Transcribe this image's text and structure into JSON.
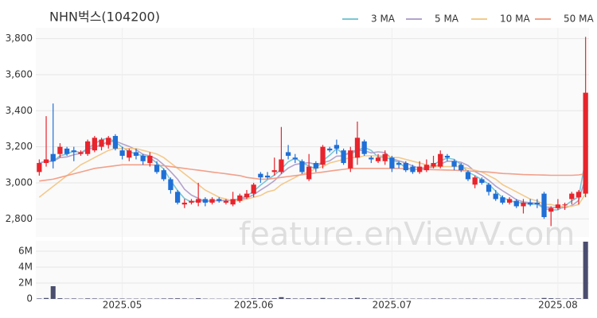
{
  "chart_data": {
    "type": "candlestick",
    "title": "NHN벅스(104200)",
    "watermark": "feature.enViewV.com",
    "categories": [
      null,
      null,
      null,
      null,
      null,
      null,
      null,
      null,
      null,
      null,
      null,
      null,
      "2025.05",
      null,
      null,
      null,
      null,
      null,
      null,
      null,
      null,
      null,
      null,
      null,
      null,
      null,
      null,
      null,
      null,
      null,
      null,
      "2025.06",
      null,
      null,
      null,
      null,
      null,
      null,
      null,
      null,
      null,
      null,
      null,
      null,
      null,
      null,
      null,
      null,
      null,
      null,
      null,
      "2025.07",
      null,
      null,
      null,
      null,
      null,
      null,
      null,
      null,
      null,
      null,
      null,
      null,
      null,
      null,
      null,
      null,
      null,
      null,
      null,
      null,
      null,
      null,
      null,
      "2025.08",
      null,
      null,
      null,
      null
    ],
    "open": [
      3060,
      3110,
      3160,
      3160,
      3190,
      3180,
      3160,
      3160,
      3180,
      3200,
      3210,
      3260,
      3180,
      3140,
      3170,
      3150,
      3110,
      3100,
      3070,
      3020,
      2950,
      2880,
      2890,
      2890,
      2910,
      2890,
      2910,
      2890,
      2880,
      2900,
      2920,
      2940,
      3050,
      3040,
      3060,
      3060,
      3170,
      3140,
      3120,
      3020,
      3110,
      3100,
      3190,
      3210,
      3180,
      3080,
      3140,
      3230,
      3140,
      3120,
      3120,
      3140,
      3110,
      3110,
      3090,
      3060,
      3070,
      3090,
      3090,
      3150,
      3120,
      3100,
      3060,
      2990,
      3020,
      2990,
      2940,
      2920,
      2890,
      2900,
      2870,
      2890,
      2890,
      2940,
      2840,
      2860,
      2880,
      2910,
      2920,
      2940
    ],
    "high": [
      3130,
      3370,
      3440,
      3220,
      3200,
      3200,
      3180,
      3240,
      3260,
      3250,
      3260,
      3270,
      3200,
      3190,
      3190,
      3160,
      3170,
      3120,
      3080,
      3030,
      2960,
      2910,
      2910,
      3000,
      2920,
      2920,
      2920,
      2910,
      2950,
      2940,
      2960,
      3000,
      3060,
      3060,
      3140,
      3310,
      3210,
      3160,
      3130,
      3160,
      3120,
      3210,
      3200,
      3240,
      3190,
      3200,
      3340,
      3240,
      3150,
      3160,
      3180,
      3150,
      3120,
      3120,
      3100,
      3120,
      3130,
      3150,
      3180,
      3160,
      3130,
      3110,
      3070,
      3040,
      3030,
      3000,
      2960,
      2930,
      2920,
      2910,
      2910,
      2910,
      2910,
      2950,
      2870,
      2910,
      2890,
      2950,
      2960,
      3810
    ],
    "low": [
      3040,
      3090,
      3080,
      3140,
      3150,
      3120,
      3150,
      3150,
      3170,
      3180,
      3190,
      3180,
      3130,
      3120,
      3130,
      3100,
      3090,
      3050,
      3010,
      2940,
      2880,
      2860,
      2880,
      2870,
      2870,
      2880,
      2890,
      2880,
      2870,
      2890,
      2910,
      2920,
      3000,
      3020,
      3040,
      3050,
      3130,
      3110,
      3050,
      3010,
      3060,
      3080,
      3170,
      3160,
      3100,
      3060,
      3100,
      3150,
      3110,
      3110,
      3100,
      3060,
      3080,
      3060,
      3050,
      3050,
      3060,
      3080,
      3080,
      3120,
      3070,
      3060,
      3010,
      2970,
      2990,
      2930,
      2900,
      2880,
      2880,
      2860,
      2830,
      2870,
      2860,
      2800,
      2760,
      2850,
      2850,
      2880,
      2880,
      2920
    ],
    "close": [
      3110,
      3130,
      3120,
      3200,
      3160,
      3170,
      3170,
      3230,
      3250,
      3240,
      3250,
      3190,
      3150,
      3180,
      3150,
      3120,
      3150,
      3060,
      3020,
      2960,
      2890,
      2890,
      2900,
      2910,
      2890,
      2910,
      2900,
      2900,
      2910,
      2930,
      2940,
      2990,
      3030,
      3030,
      3070,
      3130,
      3150,
      3130,
      3060,
      3090,
      3080,
      3200,
      3180,
      3190,
      3110,
      3180,
      3250,
      3160,
      3130,
      3140,
      3160,
      3080,
      3100,
      3070,
      3060,
      3090,
      3100,
      3110,
      3160,
      3140,
      3090,
      3070,
      3020,
      3030,
      3000,
      2950,
      2910,
      2890,
      2910,
      2870,
      2890,
      2880,
      2880,
      2810,
      2860,
      2880,
      2880,
      2940,
      2950,
      3500
    ],
    "up_color": "#e8242c",
    "down_color": "#1f6fd6",
    "series": [
      {
        "name": "3 MA",
        "color": "#79c7d6",
        "values": [
          3110,
          3120,
          3120,
          3150,
          3160,
          3177,
          3167,
          3190,
          3217,
          3240,
          3247,
          3227,
          3197,
          3173,
          3160,
          3150,
          3140,
          3110,
          3077,
          3013,
          2957,
          2913,
          2893,
          2900,
          2900,
          2903,
          2900,
          2903,
          2903,
          2913,
          2927,
          2953,
          2987,
          3017,
          3043,
          3077,
          3117,
          3137,
          3113,
          3093,
          3077,
          3123,
          3153,
          3190,
          3160,
          3160,
          3180,
          3197,
          3180,
          3143,
          3143,
          3127,
          3113,
          3083,
          3077,
          3073,
          3083,
          3100,
          3123,
          3137,
          3130,
          3100,
          3060,
          3040,
          3017,
          2993,
          2953,
          2917,
          2903,
          2890,
          2890,
          2880,
          2883,
          2857,
          2850,
          2850,
          2873,
          2900,
          2923,
          3130
        ]
      },
      {
        "name": "5 MA",
        "color": "#b3a3cc",
        "values": [
          3110,
          3120,
          3120,
          3140,
          3144,
          3156,
          3164,
          3186,
          3196,
          3212,
          3228,
          3232,
          3216,
          3202,
          3184,
          3158,
          3150,
          3132,
          3100,
          3062,
          3020,
          2964,
          2932,
          2914,
          2896,
          2900,
          2902,
          2902,
          2902,
          2910,
          2916,
          2934,
          2960,
          2984,
          3012,
          3050,
          3082,
          3102,
          3108,
          3112,
          3102,
          3112,
          3122,
          3148,
          3150,
          3172,
          3182,
          3178,
          3166,
          3172,
          3168,
          3134,
          3122,
          3110,
          3094,
          3080,
          3084,
          3086,
          3104,
          3120,
          3120,
          3114,
          3096,
          3062,
          3042,
          3014,
          2982,
          2956,
          2932,
          2906,
          2894,
          2890,
          2886,
          2866,
          2864,
          2862,
          2862,
          2874,
          2902,
          3030
        ]
      },
      {
        "name": "10 MA",
        "color": "#f3c98b",
        "values": [
          2920,
          2950,
          2980,
          3010,
          3040,
          3070,
          3100,
          3120,
          3140,
          3160,
          3180,
          3190,
          3190,
          3190,
          3190,
          3180,
          3170,
          3160,
          3140,
          3110,
          3080,
          3050,
          3020,
          2990,
          2960,
          2940,
          2920,
          2910,
          2900,
          2900,
          2910,
          2920,
          2930,
          2950,
          2960,
          2990,
          3010,
          3030,
          3050,
          3060,
          3080,
          3090,
          3110,
          3120,
          3130,
          3140,
          3140,
          3150,
          3150,
          3150,
          3150,
          3140,
          3140,
          3130,
          3120,
          3110,
          3100,
          3090,
          3090,
          3090,
          3090,
          3090,
          3080,
          3070,
          3060,
          3040,
          3020,
          2990,
          2970,
          2950,
          2930,
          2910,
          2900,
          2880,
          2880,
          2870,
          2870,
          2870,
          2880,
          2940
        ]
      },
      {
        "name": "50 MA",
        "color": "#f2a08a",
        "values": [
          3010,
          3015,
          3020,
          3030,
          3040,
          3050,
          3060,
          3070,
          3080,
          3085,
          3090,
          3095,
          3100,
          3100,
          3100,
          3100,
          3100,
          3098,
          3095,
          3090,
          3085,
          3080,
          3075,
          3070,
          3065,
          3060,
          3055,
          3050,
          3045,
          3040,
          3030,
          3025,
          3020,
          3020,
          3025,
          3030,
          3035,
          3040,
          3045,
          3050,
          3055,
          3060,
          3065,
          3070,
          3075,
          3080,
          3080,
          3080,
          3080,
          3080,
          3080,
          3080,
          3080,
          3078,
          3076,
          3075,
          3074,
          3073,
          3072,
          3071,
          3070,
          3068,
          3066,
          3064,
          3062,
          3060,
          3056,
          3052,
          3050,
          3048,
          3046,
          3045,
          3044,
          3043,
          3042,
          3042,
          3042,
          3042,
          3044,
          3050
        ]
      }
    ],
    "ylim": [
      2700,
      3860
    ],
    "yticks": [
      {
        "value": 2800,
        "label": "2,800"
      },
      {
        "value": 3000,
        "label": "3,000"
      },
      {
        "value": 3200,
        "label": "3,200"
      },
      {
        "value": 3400,
        "label": "3,400"
      },
      {
        "value": 3600,
        "label": "3,600"
      },
      {
        "value": 3800,
        "label": "3,800"
      }
    ],
    "grid": true,
    "volume": {
      "color": "#4a4d6e",
      "ylim": [
        0,
        7300000
      ],
      "yticks": [
        0,
        {
          "value": 2000000,
          "label": "2M"
        },
        {
          "value": 4000000,
          "label": "4M"
        },
        {
          "value": 6000000,
          "label": "6M"
        }
      ],
      "values": [
        60000,
        120000,
        1600000,
        90000,
        50000,
        60000,
        40000,
        70000,
        60000,
        50000,
        50000,
        60000,
        50000,
        40000,
        40000,
        40000,
        50000,
        50000,
        60000,
        70000,
        80000,
        60000,
        40000,
        90000,
        40000,
        30000,
        30000,
        30000,
        50000,
        40000,
        50000,
        80000,
        90000,
        60000,
        90000,
        220000,
        90000,
        60000,
        60000,
        90000,
        60000,
        120000,
        60000,
        70000,
        60000,
        90000,
        150000,
        80000,
        50000,
        40000,
        50000,
        60000,
        40000,
        50000,
        40000,
        50000,
        40000,
        60000,
        60000,
        50000,
        50000,
        50000,
        60000,
        60000,
        40000,
        60000,
        60000,
        50000,
        40000,
        60000,
        70000,
        40000,
        40000,
        120000,
        90000,
        60000,
        40000,
        80000,
        70000,
        7200000
      ]
    }
  }
}
